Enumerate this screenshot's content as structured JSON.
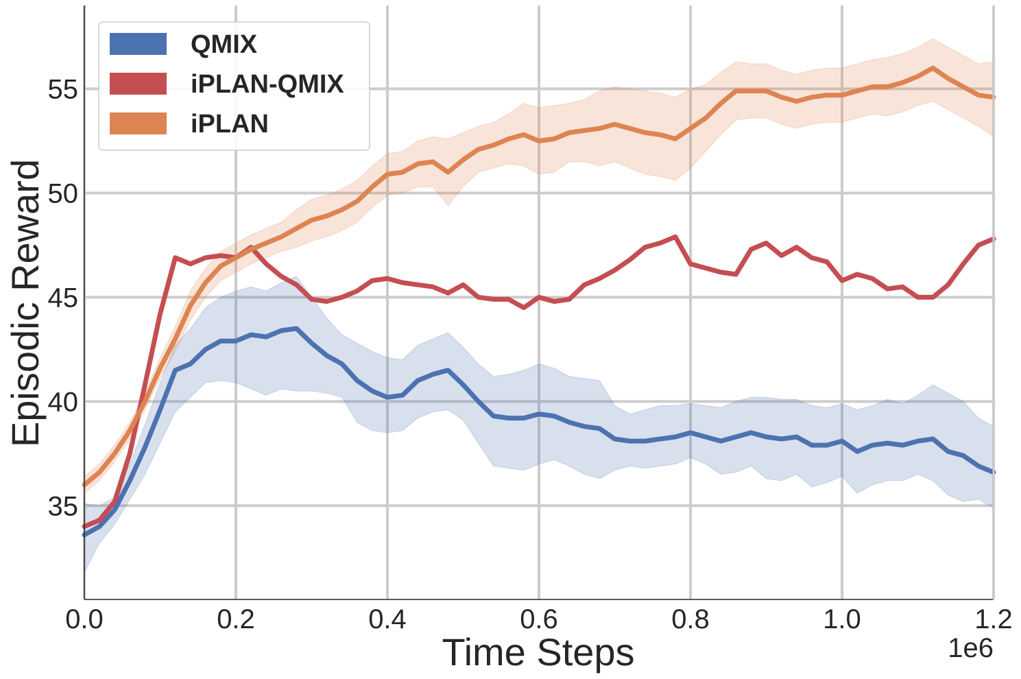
{
  "chart_data": {
    "type": "line",
    "xlabel": "Time Steps",
    "ylabel": "Episodic Reward",
    "x_offset_label": "1e6",
    "xlim": [
      0,
      1.2
    ],
    "ylim": [
      30.5,
      59
    ],
    "x_ticks": [
      0.0,
      0.2,
      0.4,
      0.6,
      0.8,
      1.0,
      1.2
    ],
    "x_tick_labels": [
      "0.0",
      "0.2",
      "0.4",
      "0.6",
      "0.8",
      "1.0",
      "1.2"
    ],
    "y_ticks": [
      35,
      40,
      45,
      50,
      55
    ],
    "y_tick_labels": [
      "35",
      "40",
      "45",
      "50",
      "55"
    ],
    "grid": true,
    "legend_position": "top-left",
    "series": [
      {
        "name": "QMIX",
        "color": "#4c72b0",
        "x": [
          0.0,
          0.02,
          0.04,
          0.06,
          0.08,
          0.1,
          0.12,
          0.14,
          0.16,
          0.18,
          0.2,
          0.22,
          0.24,
          0.26,
          0.28,
          0.3,
          0.32,
          0.34,
          0.36,
          0.38,
          0.4,
          0.42,
          0.44,
          0.46,
          0.48,
          0.5,
          0.52,
          0.54,
          0.56,
          0.58,
          0.6,
          0.62,
          0.64,
          0.66,
          0.68,
          0.7,
          0.72,
          0.74,
          0.76,
          0.78,
          0.8,
          0.82,
          0.84,
          0.86,
          0.88,
          0.9,
          0.92,
          0.94,
          0.96,
          0.98,
          1.0,
          1.02,
          1.04,
          1.06,
          1.08,
          1.1,
          1.12,
          1.14,
          1.16,
          1.18,
          1.2
        ],
        "values": [
          33.6,
          34.0,
          34.8,
          36.2,
          37.8,
          39.6,
          41.5,
          41.8,
          42.5,
          42.9,
          42.9,
          43.2,
          43.1,
          43.4,
          43.5,
          42.8,
          42.2,
          41.8,
          41.0,
          40.5,
          40.2,
          40.3,
          41.0,
          41.3,
          41.5,
          40.8,
          40.0,
          39.3,
          39.2,
          39.2,
          39.4,
          39.3,
          39.0,
          38.8,
          38.7,
          38.2,
          38.1,
          38.1,
          38.2,
          38.3,
          38.5,
          38.3,
          38.1,
          38.3,
          38.5,
          38.3,
          38.2,
          38.3,
          37.9,
          37.9,
          38.1,
          37.6,
          37.9,
          38.0,
          37.9,
          38.1,
          38.2,
          37.6,
          37.4,
          36.9,
          36.6
        ],
        "lower": [
          31.8,
          33.2,
          34.1,
          35.3,
          36.5,
          38.0,
          39.5,
          40.2,
          40.9,
          41.0,
          40.9,
          40.6,
          40.3,
          40.6,
          40.5,
          40.5,
          40.4,
          40.2,
          39.0,
          38.6,
          38.5,
          38.6,
          39.2,
          39.5,
          39.6,
          39.1,
          38.0,
          36.9,
          36.8,
          36.7,
          37.0,
          37.2,
          36.9,
          36.5,
          36.3,
          36.7,
          36.9,
          36.8,
          36.9,
          37.0,
          37.3,
          37.0,
          36.5,
          36.6,
          36.9,
          36.3,
          36.2,
          36.5,
          35.9,
          36.1,
          36.4,
          35.6,
          36.0,
          36.2,
          36.2,
          36.5,
          36.2,
          35.5,
          35.2,
          35.3,
          34.9
        ],
        "upper": [
          35.1,
          35.0,
          35.4,
          37.0,
          38.9,
          40.9,
          42.7,
          43.5,
          44.5,
          45.0,
          45.3,
          45.5,
          45.3,
          45.7,
          46.0,
          45.0,
          44.0,
          43.2,
          42.8,
          42.4,
          42.1,
          42.0,
          42.7,
          43.0,
          43.3,
          42.6,
          41.8,
          41.2,
          41.3,
          41.5,
          41.8,
          41.6,
          41.2,
          41.1,
          41.0,
          39.8,
          39.4,
          39.6,
          39.8,
          39.8,
          39.9,
          39.8,
          39.7,
          40.0,
          40.2,
          40.2,
          40.1,
          40.1,
          39.8,
          39.7,
          39.9,
          39.6,
          39.8,
          40.1,
          39.9,
          40.3,
          40.8,
          40.4,
          40.0,
          39.2,
          38.8
        ]
      },
      {
        "name": "iPLAN-QMIX",
        "color": "#c44e52",
        "x": [
          0.0,
          0.02,
          0.04,
          0.06,
          0.08,
          0.1,
          0.12,
          0.14,
          0.16,
          0.18,
          0.2,
          0.22,
          0.24,
          0.26,
          0.28,
          0.3,
          0.32,
          0.34,
          0.36,
          0.38,
          0.4,
          0.42,
          0.44,
          0.46,
          0.48,
          0.5,
          0.52,
          0.54,
          0.56,
          0.58,
          0.6,
          0.62,
          0.64,
          0.66,
          0.68,
          0.7,
          0.72,
          0.74,
          0.76,
          0.78,
          0.8,
          0.82,
          0.84,
          0.86,
          0.88,
          0.9,
          0.92,
          0.94,
          0.96,
          0.98,
          1.0,
          1.02,
          1.04,
          1.06,
          1.08,
          1.1,
          1.12,
          1.14,
          1.16,
          1.18,
          1.2
        ],
        "values": [
          34.0,
          34.3,
          35.2,
          37.5,
          40.8,
          44.2,
          46.9,
          46.6,
          46.9,
          47.0,
          46.9,
          47.4,
          46.6,
          46.0,
          45.6,
          44.9,
          44.8,
          45.0,
          45.3,
          45.8,
          45.9,
          45.7,
          45.6,
          45.5,
          45.2,
          45.6,
          45.0,
          44.9,
          44.9,
          44.5,
          45.0,
          44.8,
          44.9,
          45.6,
          45.9,
          46.3,
          46.8,
          47.4,
          47.6,
          47.9,
          46.6,
          46.4,
          46.2,
          46.1,
          47.3,
          47.6,
          47.0,
          47.4,
          46.9,
          46.7,
          45.8,
          46.1,
          45.9,
          45.4,
          45.5,
          45.0,
          45.0,
          45.6,
          46.6,
          47.5,
          47.8
        ]
      },
      {
        "name": "iPLAN",
        "color": "#dd8452",
        "x": [
          0.0,
          0.02,
          0.04,
          0.06,
          0.08,
          0.1,
          0.12,
          0.14,
          0.16,
          0.18,
          0.2,
          0.22,
          0.24,
          0.26,
          0.28,
          0.3,
          0.32,
          0.34,
          0.36,
          0.38,
          0.4,
          0.42,
          0.44,
          0.46,
          0.48,
          0.5,
          0.52,
          0.54,
          0.56,
          0.58,
          0.6,
          0.62,
          0.64,
          0.66,
          0.68,
          0.7,
          0.72,
          0.74,
          0.76,
          0.78,
          0.8,
          0.82,
          0.84,
          0.86,
          0.88,
          0.9,
          0.92,
          0.94,
          0.96,
          0.98,
          1.0,
          1.02,
          1.04,
          1.06,
          1.08,
          1.1,
          1.12,
          1.14,
          1.16,
          1.18,
          1.2
        ],
        "values": [
          36.0,
          36.6,
          37.5,
          38.6,
          40.0,
          41.6,
          43.0,
          44.6,
          45.7,
          46.5,
          46.9,
          47.3,
          47.6,
          47.9,
          48.3,
          48.7,
          48.9,
          49.2,
          49.6,
          50.3,
          50.9,
          51.0,
          51.4,
          51.5,
          51.0,
          51.6,
          52.1,
          52.3,
          52.6,
          52.8,
          52.5,
          52.6,
          52.9,
          53.0,
          53.1,
          53.3,
          53.1,
          52.9,
          52.8,
          52.6,
          53.1,
          53.6,
          54.3,
          54.9,
          54.9,
          54.9,
          54.6,
          54.4,
          54.6,
          54.7,
          54.7,
          54.9,
          55.1,
          55.1,
          55.3,
          55.6,
          56.0,
          55.5,
          55.1,
          54.7,
          54.6
        ],
        "lower": [
          35.6,
          36.2,
          37.1,
          38.2,
          39.6,
          41.1,
          42.4,
          43.9,
          45.0,
          45.8,
          46.2,
          46.6,
          46.9,
          47.2,
          47.4,
          47.7,
          47.9,
          48.2,
          48.6,
          49.3,
          49.9,
          50.0,
          50.3,
          50.3,
          49.4,
          50.3,
          51.0,
          51.2,
          51.4,
          51.3,
          50.9,
          51.0,
          51.5,
          51.5,
          51.3,
          51.5,
          51.2,
          50.9,
          50.8,
          50.6,
          51.2,
          52.0,
          52.8,
          53.5,
          53.6,
          53.6,
          53.3,
          53.1,
          53.3,
          53.4,
          53.4,
          53.6,
          53.8,
          53.7,
          53.9,
          54.2,
          54.4,
          54.0,
          53.6,
          53.2,
          52.7
        ],
        "upper": [
          36.4,
          37.0,
          37.9,
          39.0,
          40.4,
          42.1,
          43.6,
          45.3,
          46.4,
          47.2,
          47.6,
          48.0,
          48.3,
          48.6,
          49.2,
          49.7,
          49.9,
          50.2,
          50.6,
          51.3,
          51.9,
          52.0,
          52.5,
          52.7,
          52.6,
          52.9,
          53.2,
          53.4,
          53.8,
          54.3,
          54.1,
          54.2,
          54.3,
          54.5,
          54.9,
          55.1,
          55.0,
          54.9,
          54.8,
          54.6,
          55.0,
          55.2,
          55.8,
          56.3,
          56.2,
          56.2,
          55.9,
          55.7,
          55.9,
          56.0,
          56.0,
          56.2,
          56.4,
          56.5,
          56.7,
          57.0,
          57.4,
          57.0,
          56.6,
          56.2,
          56.3
        ]
      }
    ]
  }
}
